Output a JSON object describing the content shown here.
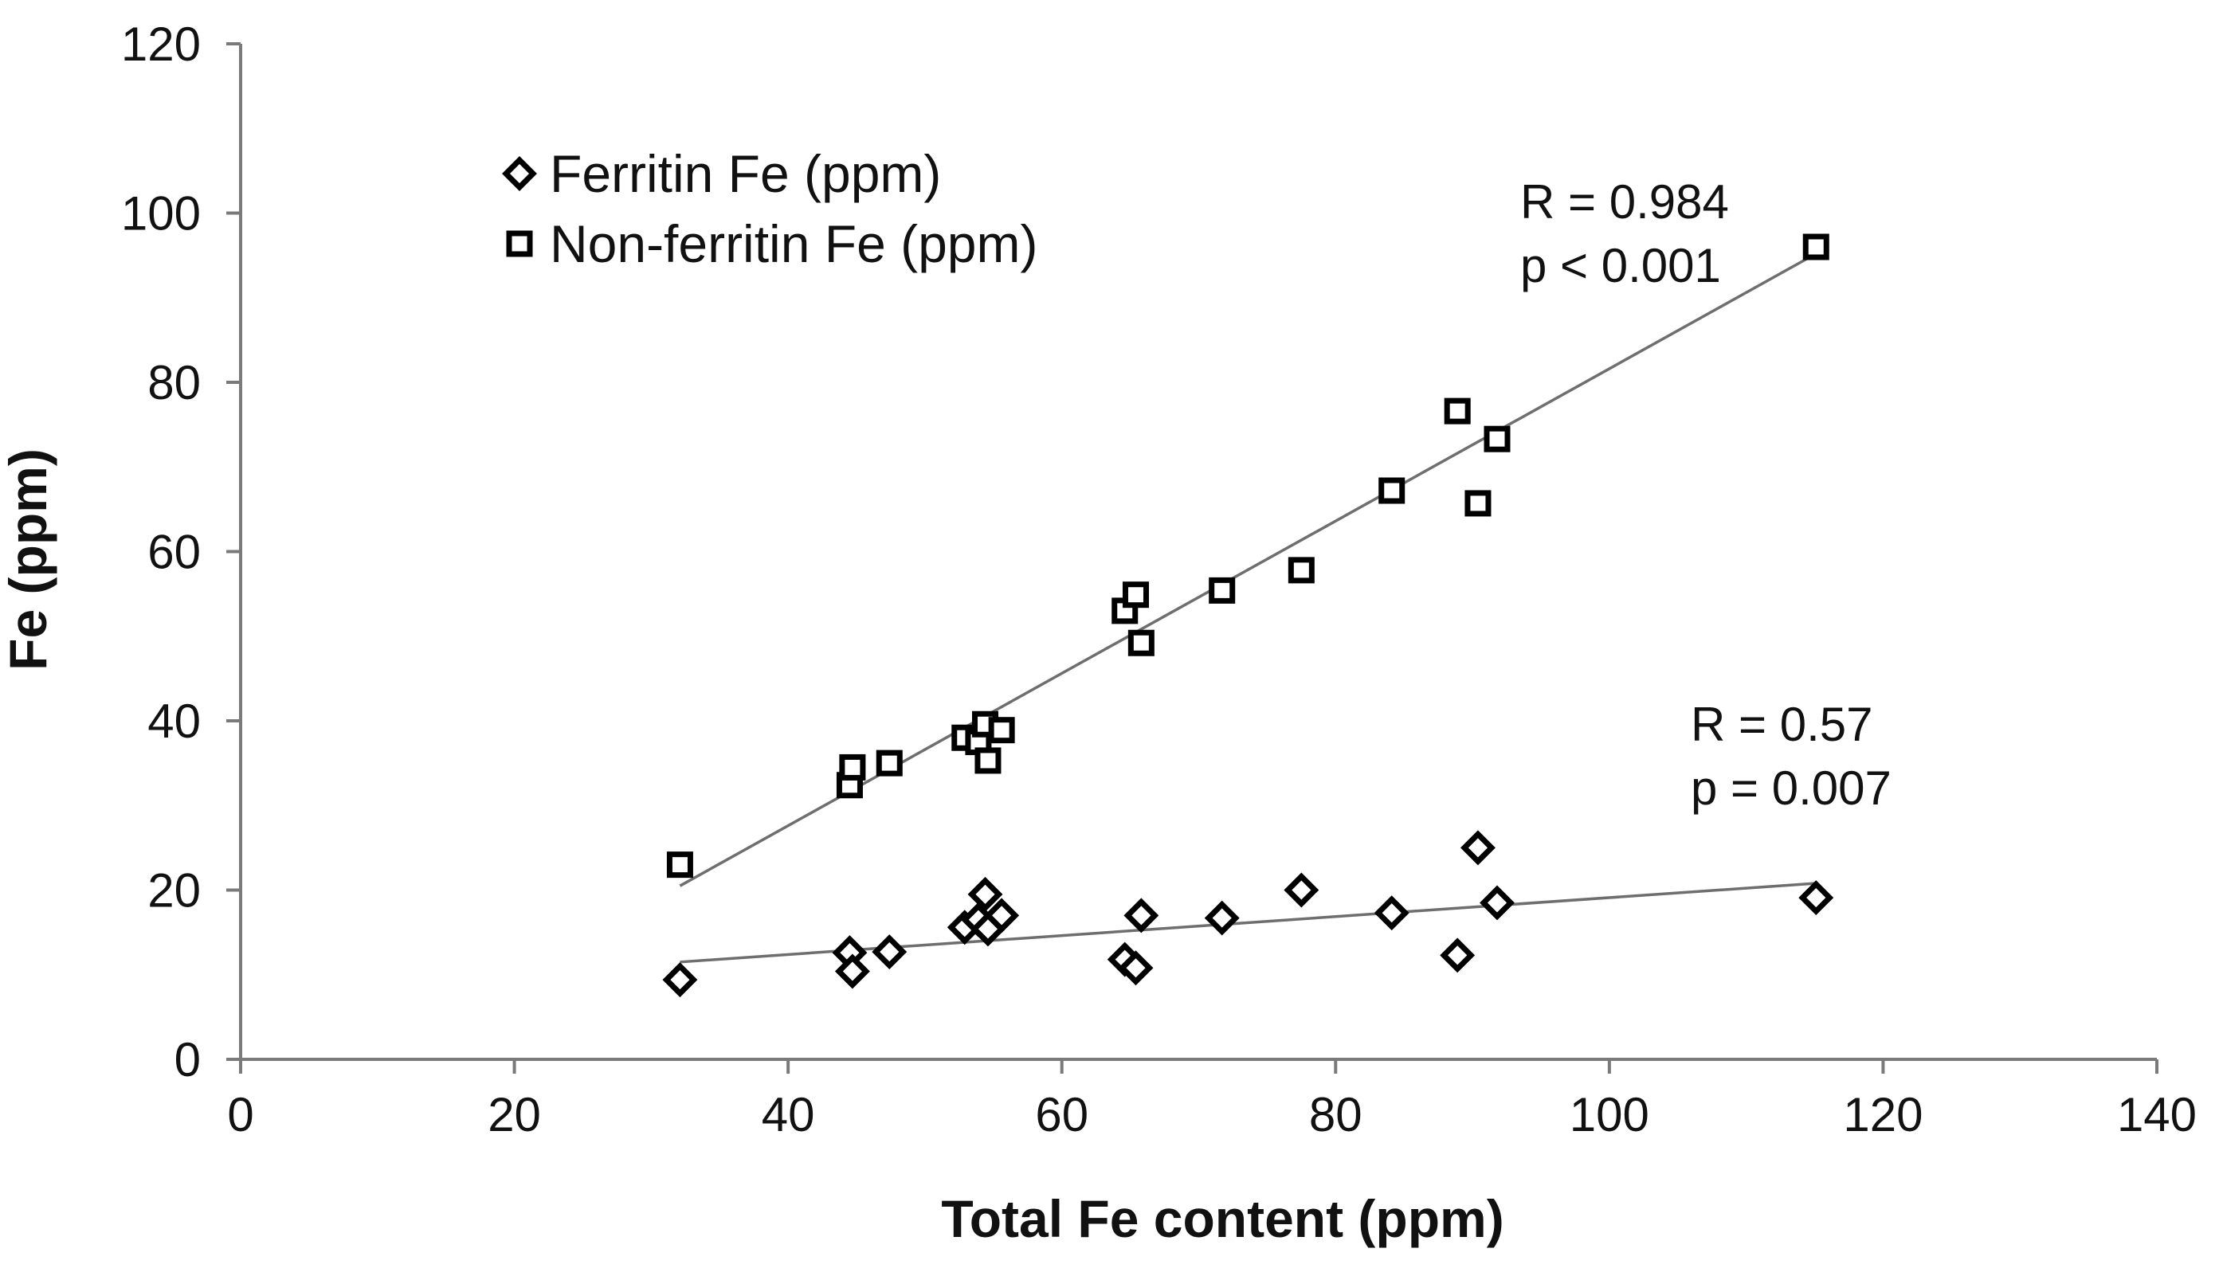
{
  "chart_data": {
    "type": "scatter",
    "xlabel": "Total Fe content (ppm)",
    "ylabel": "Fe (ppm)",
    "xlim": [
      0,
      140
    ],
    "ylim": [
      0,
      120
    ],
    "x_ticks": [
      0,
      20,
      40,
      60,
      80,
      100,
      120,
      140
    ],
    "y_ticks": [
      0,
      20,
      40,
      60,
      80,
      100,
      120
    ],
    "grid": false,
    "legend_position": "top-left",
    "series": [
      {
        "name": "Ferritin Fe (ppm)",
        "marker": "diamond",
        "points": [
          {
            "x": 32.1,
            "y": 9.4
          },
          {
            "x": 44.5,
            "y": 12.6
          },
          {
            "x": 44.7,
            "y": 10.4
          },
          {
            "x": 47.4,
            "y": 12.7
          },
          {
            "x": 52.9,
            "y": 15.6
          },
          {
            "x": 53.9,
            "y": 16.5
          },
          {
            "x": 54.4,
            "y": 19.5
          },
          {
            "x": 54.6,
            "y": 15.4
          },
          {
            "x": 55.6,
            "y": 17.0
          },
          {
            "x": 64.6,
            "y": 11.8
          },
          {
            "x": 65.4,
            "y": 10.8
          },
          {
            "x": 65.8,
            "y": 17.0
          },
          {
            "x": 71.7,
            "y": 16.7
          },
          {
            "x": 77.5,
            "y": 20.0
          },
          {
            "x": 84.1,
            "y": 17.3
          },
          {
            "x": 88.9,
            "y": 12.3
          },
          {
            "x": 90.4,
            "y": 25.0
          },
          {
            "x": 91.8,
            "y": 18.5
          },
          {
            "x": 115.1,
            "y": 19.1
          }
        ],
        "trendline": {
          "x": [
            32.1,
            115.1
          ],
          "y": [
            11.5,
            20.8
          ]
        },
        "annotation": [
          "R = 0.57",
          "p = 0.007"
        ]
      },
      {
        "name": "Non-ferritin Fe (ppm)",
        "marker": "square",
        "points": [
          {
            "x": 32.1,
            "y": 23.0
          },
          {
            "x": 44.5,
            "y": 32.4
          },
          {
            "x": 44.7,
            "y": 34.5
          },
          {
            "x": 47.4,
            "y": 35.0
          },
          {
            "x": 52.9,
            "y": 38.0
          },
          {
            "x": 53.9,
            "y": 37.5
          },
          {
            "x": 54.4,
            "y": 39.6
          },
          {
            "x": 54.6,
            "y": 35.3
          },
          {
            "x": 55.6,
            "y": 38.9
          },
          {
            "x": 64.6,
            "y": 53.0
          },
          {
            "x": 65.4,
            "y": 54.9
          },
          {
            "x": 65.8,
            "y": 49.2
          },
          {
            "x": 71.7,
            "y": 55.4
          },
          {
            "x": 77.5,
            "y": 57.8
          },
          {
            "x": 84.1,
            "y": 67.2
          },
          {
            "x": 88.9,
            "y": 76.6
          },
          {
            "x": 90.4,
            "y": 65.7
          },
          {
            "x": 91.8,
            "y": 73.3
          },
          {
            "x": 115.1,
            "y": 96.0
          }
        ],
        "trendline": {
          "x": [
            32.1,
            115.1
          ],
          "y": [
            20.5,
            95.2
          ]
        },
        "annotation": [
          "R = 0.984",
          "p < 0.001"
        ]
      }
    ]
  }
}
